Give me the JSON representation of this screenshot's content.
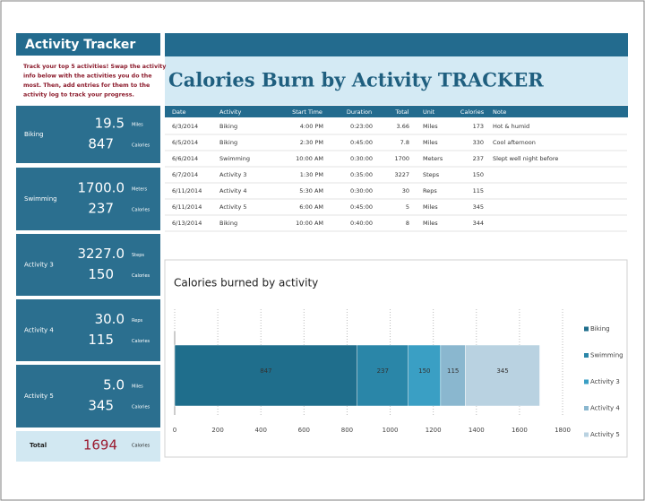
{
  "sidebar": {
    "title": "Activity Tracker",
    "instructions": [
      "Track your top 5 activities! Swap the activity",
      "info below with the activities you do the",
      "most. Then, add entries for them to the",
      "activity log to track your progress."
    ],
    "blocks": [
      {
        "name": "Biking",
        "value": "19.5",
        "unit": "Miles",
        "calories": "847",
        "calories_unit": "Calories"
      },
      {
        "name": "Swimming",
        "value": "1700.0",
        "unit": "Meters",
        "calories": "237",
        "calories_unit": "Calories"
      },
      {
        "name": "Activity 3",
        "value": "3227.0",
        "unit": "Steps",
        "calories": "150",
        "calories_unit": "Calories"
      },
      {
        "name": "Activity 4",
        "value": "30.0",
        "unit": "Reps",
        "calories": "115",
        "calories_unit": "Calories"
      },
      {
        "name": "Activity 5",
        "value": "5.0",
        "unit": "Miles",
        "calories": "345",
        "calories_unit": "Calories"
      }
    ],
    "total": {
      "label": "Total",
      "value": "1694",
      "unit": "Calories"
    }
  },
  "header": {
    "title": "Calories Burn by Activity TRACKER"
  },
  "table": {
    "columns": [
      "Date",
      "Activity",
      "Start Time",
      "Duration",
      "Total",
      "Unit",
      "Calories",
      "Note"
    ],
    "rows": [
      [
        "6/3/2014",
        "Biking",
        "4:00 PM",
        "0:23:00",
        "3.66",
        "Miles",
        "173",
        "Hot & humid"
      ],
      [
        "6/5/2014",
        "Biking",
        "2:30 PM",
        "0:45:00",
        "7.8",
        "Miles",
        "330",
        "Cool afternoon"
      ],
      [
        "6/6/2014",
        "Swimming",
        "10:00 AM",
        "0:30:00",
        "1700",
        "Meters",
        "237",
        "Slept well night before"
      ],
      [
        "6/7/2014",
        "Activity 3",
        "1:30 PM",
        "0:35:00",
        "3227",
        "Steps",
        "150",
        null
      ],
      [
        "6/11/2014",
        "Activity 4",
        "5:30 AM",
        "0:30:00",
        "30",
        "Reps",
        "115",
        null
      ],
      [
        "6/11/2014",
        "Activity 5",
        "6:00 AM",
        "0:45:00",
        "5",
        "Miles",
        "345",
        null
      ],
      [
        "6/13/2014",
        "Biking",
        "10:00 AM",
        "0:40:00",
        "8",
        "Miles",
        "344",
        null
      ]
    ]
  },
  "chart_data": {
    "type": "stacked-barh",
    "title": "Calories burned by activity",
    "categories": [
      null
    ],
    "series": [
      {
        "name": "Biking",
        "color": "#1f6e8c",
        "values": [
          847
        ]
      },
      {
        "name": "Swimming",
        "color": "#2a86a8",
        "values": [
          237
        ]
      },
      {
        "name": "Activity 3",
        "color": "#3a9fc4",
        "values": [
          150
        ]
      },
      {
        "name": "Activity 4",
        "color": "#8ab7cf",
        "values": [
          115
        ]
      },
      {
        "name": "Activity 5",
        "color": "#b9d2e1",
        "values": [
          345
        ]
      }
    ],
    "xlim": [
      0,
      1800
    ],
    "xticks": [
      0,
      200,
      400,
      600,
      800,
      1000,
      1200,
      1400,
      1600,
      1800
    ],
    "grid": true,
    "data_labels": true,
    "legend": "right"
  }
}
